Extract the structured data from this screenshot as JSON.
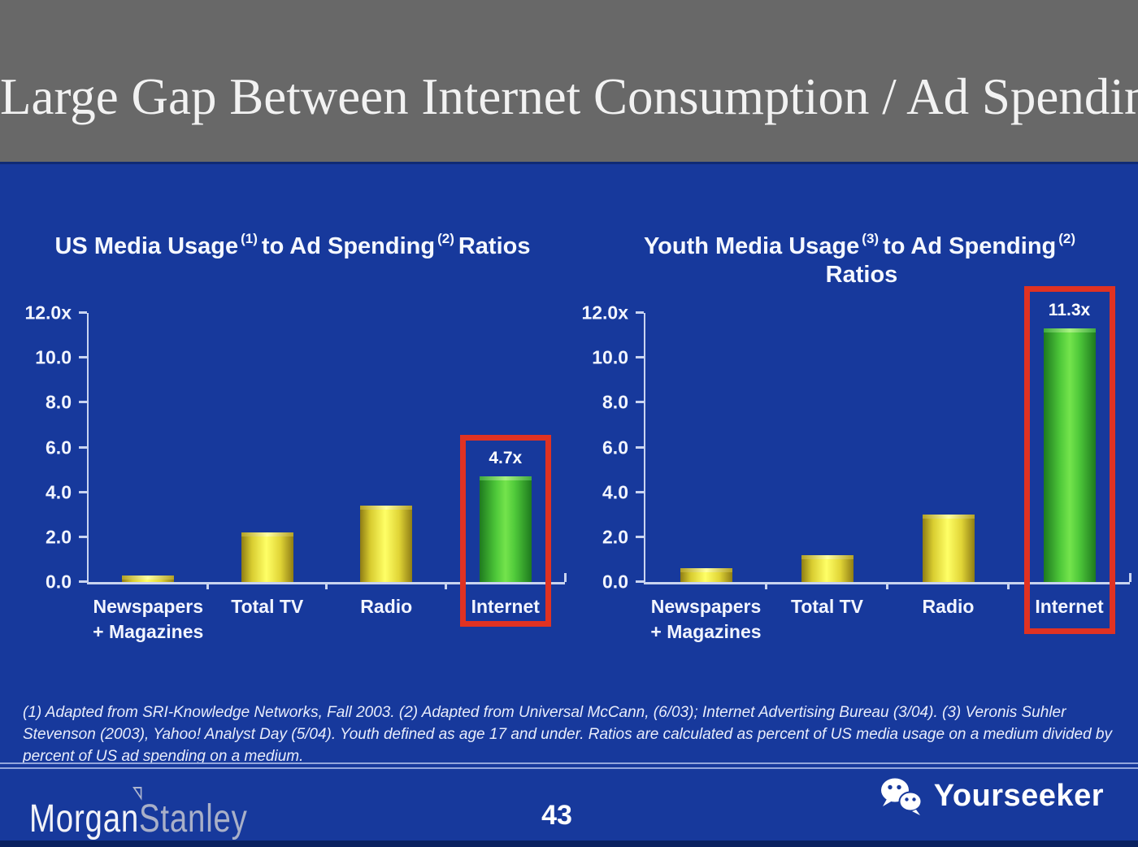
{
  "header": {
    "title": "Large Gap Between Internet Consumption / Ad Spending"
  },
  "chart_data": [
    {
      "type": "bar",
      "title": {
        "pre": "US Media Usage",
        "sup1": "(1)",
        "mid": "to Ad Spending",
        "sup2": "(2)",
        "post": "Ratios",
        "line2": ""
      },
      "categories": [
        "Newspapers\n+ Magazines",
        "Total TV",
        "Radio",
        "Internet"
      ],
      "values": [
        0.3,
        2.2,
        3.4,
        4.7
      ],
      "bar_labels": [
        "",
        "",
        "",
        "4.7x"
      ],
      "highlight_index": 3,
      "yticks": [
        {
          "v": 12,
          "label": "12.0x"
        },
        {
          "v": 10,
          "label": "10.0"
        },
        {
          "v": 8,
          "label": "8.0"
        },
        {
          "v": 6,
          "label": "6.0"
        },
        {
          "v": 4,
          "label": "4.0"
        },
        {
          "v": 2,
          "label": "2.0"
        },
        {
          "v": 0,
          "label": "0.0"
        }
      ],
      "ylim": [
        0,
        12
      ],
      "grid": false,
      "legend": "none",
      "xlabel": "",
      "ylabel": ""
    },
    {
      "type": "bar",
      "title": {
        "pre": "Youth Media Usage",
        "sup1": "(3)",
        "mid": "to Ad Spending",
        "sup2": "(2)",
        "post": "",
        "line2": "Ratios"
      },
      "categories": [
        "Newspapers\n+ Magazines",
        "Total TV",
        "Radio",
        "Internet"
      ],
      "values": [
        0.6,
        1.2,
        3.0,
        11.3
      ],
      "bar_labels": [
        "",
        "",
        "",
        "11.3x"
      ],
      "highlight_index": 3,
      "yticks": [
        {
          "v": 12,
          "label": "12.0x"
        },
        {
          "v": 10,
          "label": "10.0"
        },
        {
          "v": 8,
          "label": "8.0"
        },
        {
          "v": 6,
          "label": "6.0"
        },
        {
          "v": 4,
          "label": "4.0"
        },
        {
          "v": 2,
          "label": "2.0"
        },
        {
          "v": 0,
          "label": "0.0"
        }
      ],
      "ylim": [
        0,
        12
      ],
      "grid": false,
      "legend": "none",
      "xlabel": "",
      "ylabel": ""
    }
  ],
  "footnote": "(1) Adapted from SRI-Knowledge Networks, Fall 2003.  (2) Adapted from Universal McCann, (6/03); Internet Advertising Bureau (3/04). (3) Veronis Suhler Stevenson (2003), Yahoo! Analyst Day (5/04).  Youth defined as age 17 and under.  Ratios are calculated as percent of US media usage on a medium divided by percent of US ad spending on a medium.",
  "footer": {
    "page_number": "43",
    "logo_part1": "Morgan",
    "logo_part2": "Stanley",
    "brand_name": "Yourseeker"
  },
  "colors": {
    "background": "#17399C",
    "header_gray": "#686868",
    "highlight_red": "#E03222",
    "axis_light": "#C9D4F0",
    "bar_yellow": "#FFF559",
    "bar_green": "#6EE04E"
  }
}
